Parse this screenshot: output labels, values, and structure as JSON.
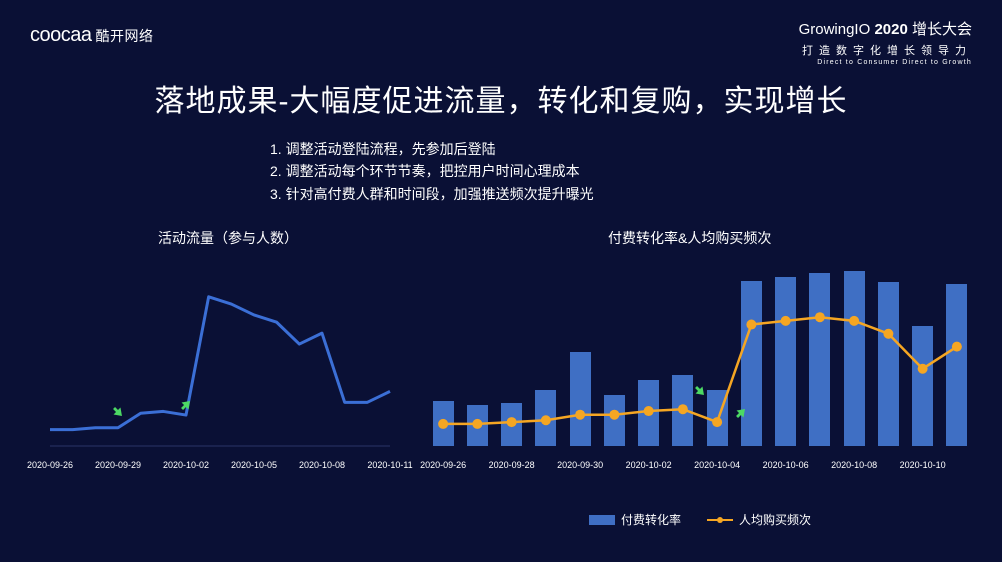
{
  "colors": {
    "background": "#0a1035",
    "text": "#ffffff",
    "line_blue": "#3b6fd6",
    "bar_blue": "#3f6fc4",
    "line_orange": "#f5a623",
    "arrow_green": "#4cd964"
  },
  "header": {
    "left_logo_brand": "coocaa",
    "left_logo_cn": "酷开网络",
    "right_line1_a": "GrowingIO",
    "right_line1_b": "2020",
    "right_line1_c": "增长大会",
    "right_line2": "打造数字化增长领导力",
    "right_line3": "Direct to Consumer Direct to Growth"
  },
  "title": "落地成果-大幅度促进流量，转化和复购，实现增长",
  "bullets": [
    "1. 调整活动登陆流程，先参加后登陆",
    "2. 调整活动每个环节节奏，把控用户时间心理成本",
    "3. 针对高付费人群和时间段，加强推送频次提升曝光"
  ],
  "left_chart": {
    "type": "line",
    "subtitle": "活动流量（参与人数）",
    "color": "#3b6fd6",
    "line_width": 3,
    "marker_size": 0,
    "x_categories": [
      "2020-09-26",
      "2020-09-27",
      "2020-09-28",
      "2020-09-29",
      "2020-09-30",
      "2020-10-01",
      "2020-10-02",
      "2020-10-03",
      "2020-10-04",
      "2020-10-05",
      "2020-10-06",
      "2020-10-07",
      "2020-10-08",
      "2020-10-09",
      "2020-10-10",
      "2020-10-11"
    ],
    "x_tick_labels": [
      "2020-09-26",
      "2020-09-29",
      "2020-10-02",
      "2020-10-05",
      "2020-10-08",
      "2020-10-11"
    ],
    "x_tick_indices": [
      0,
      3,
      6,
      9,
      12,
      15
    ],
    "ylim": [
      0,
      100
    ],
    "values": [
      9,
      9,
      10,
      10,
      18,
      19,
      17,
      82,
      78,
      72,
      68,
      56,
      62,
      24,
      24,
      30
    ],
    "arrows": [
      {
        "index": 3,
        "dy": -16,
        "rotate": 135
      },
      {
        "index": 6,
        "dy": -10,
        "rotate": 45
      }
    ]
  },
  "right_chart": {
    "type": "bar+line",
    "subtitle": "付费转化率&人均购买频次",
    "bar_color": "#3f6fc4",
    "line_color": "#f5a623",
    "line_width": 2.5,
    "marker_size": 5,
    "bar_width_ratio": 0.62,
    "x_categories": [
      "2020-09-26",
      "2020-09-27",
      "2020-09-28",
      "2020-09-29",
      "2020-09-30",
      "2020-10-01",
      "2020-10-02",
      "2020-10-03",
      "2020-10-04",
      "2020-10-05",
      "2020-10-06",
      "2020-10-07",
      "2020-10-08",
      "2020-10-09",
      "2020-10-10",
      "2020-10-11"
    ],
    "x_tick_labels": [
      "2020-09-26",
      "2020-09-28",
      "2020-09-30",
      "2020-10-02",
      "2020-10-04",
      "2020-10-06",
      "2020-10-08",
      "2020-10-10"
    ],
    "x_tick_indices": [
      0,
      2,
      4,
      6,
      8,
      10,
      12,
      14
    ],
    "ylim_bar": [
      0,
      100
    ],
    "ylim_line": [
      0,
      100
    ],
    "bar_values": [
      24,
      22,
      23,
      30,
      50,
      27,
      35,
      38,
      30,
      88,
      90,
      92,
      93,
      87,
      64,
      86
    ],
    "line_values": [
      12,
      12,
      13,
      14,
      17,
      17,
      19,
      20,
      13,
      66,
      68,
      70,
      68,
      61,
      42,
      54
    ],
    "arrows": [
      {
        "index": 7.5,
        "y": 26,
        "rotate": 135
      },
      {
        "index": 8.7,
        "y": 14,
        "rotate": 45
      }
    ],
    "legend": {
      "bar_label": "付费转化率",
      "line_label": "人均购买频次"
    }
  }
}
